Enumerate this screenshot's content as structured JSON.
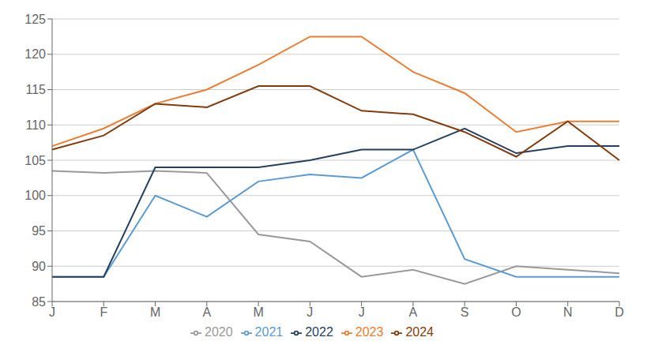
{
  "chart_data": {
    "type": "line",
    "categories": [
      "J",
      "F",
      "M",
      "A",
      "M",
      "J",
      "J",
      "A",
      "S",
      "O",
      "N",
      "D"
    ],
    "series": [
      {
        "name": "2020",
        "color": "#999999",
        "values": [
          103.5,
          103.2,
          103.5,
          103.2,
          94.5,
          93.5,
          88.5,
          89.5,
          87.5,
          90.0,
          89.5,
          89.0
        ]
      },
      {
        "name": "2021",
        "color": "#5B9BD5",
        "values": [
          88.5,
          88.5,
          100.0,
          97.0,
          102.0,
          103.0,
          102.5,
          106.5,
          91.0,
          88.5,
          88.5,
          88.5
        ]
      },
      {
        "name": "2022",
        "color": "#243F60",
        "values": [
          88.5,
          88.5,
          104.0,
          104.0,
          104.0,
          105.0,
          106.5,
          106.5,
          109.5,
          106.0,
          107.0,
          107.0
        ]
      },
      {
        "name": "2023",
        "color": "#ED7D31",
        "values": [
          107.0,
          109.5,
          113.0,
          115.0,
          118.5,
          122.5,
          122.5,
          117.5,
          114.5,
          109.0,
          110.5,
          110.5
        ]
      },
      {
        "name": "2024",
        "color": "#843C0C",
        "values": [
          106.5,
          108.5,
          113.0,
          112.5,
          115.5,
          115.5,
          112.0,
          111.5,
          109.0,
          105.5,
          110.5,
          105.0
        ]
      }
    ],
    "ylim": [
      85,
      125
    ],
    "yticks": [
      85,
      90,
      95,
      100,
      105,
      110,
      115,
      120,
      125
    ],
    "grid": true,
    "legend": "bottom"
  }
}
